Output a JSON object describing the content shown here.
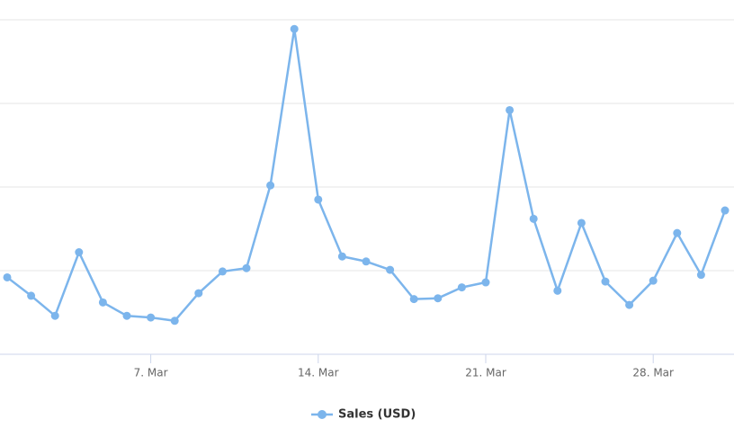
{
  "chart_data": {
    "type": "line",
    "categories": [
      null,
      null,
      null,
      null,
      null,
      null,
      "7. Mar",
      null,
      null,
      null,
      null,
      null,
      null,
      "14. Mar",
      null,
      null,
      null,
      null,
      null,
      null,
      "21. Mar",
      null,
      null,
      null,
      null,
      null,
      null,
      "28. Mar",
      null,
      null,
      null
    ],
    "series": [
      {
        "name": "Sales (USD)",
        "color": "#7cb5ec",
        "values": [
          0.92,
          0.7,
          0.46,
          1.22,
          0.62,
          0.46,
          0.44,
          0.4,
          0.73,
          0.99,
          1.03,
          2.02,
          3.89,
          1.85,
          1.17,
          1.11,
          1.01,
          0.66,
          0.67,
          0.8,
          0.86,
          2.92,
          1.62,
          0.76,
          1.57,
          0.87,
          0.59,
          0.88,
          1.45,
          0.95,
          1.72
        ]
      }
    ],
    "ylim": [
      0,
      4
    ],
    "yticks": [
      0,
      1,
      2,
      3,
      4
    ],
    "grid": true,
    "ytick_labels": false,
    "legend": "bottom"
  }
}
